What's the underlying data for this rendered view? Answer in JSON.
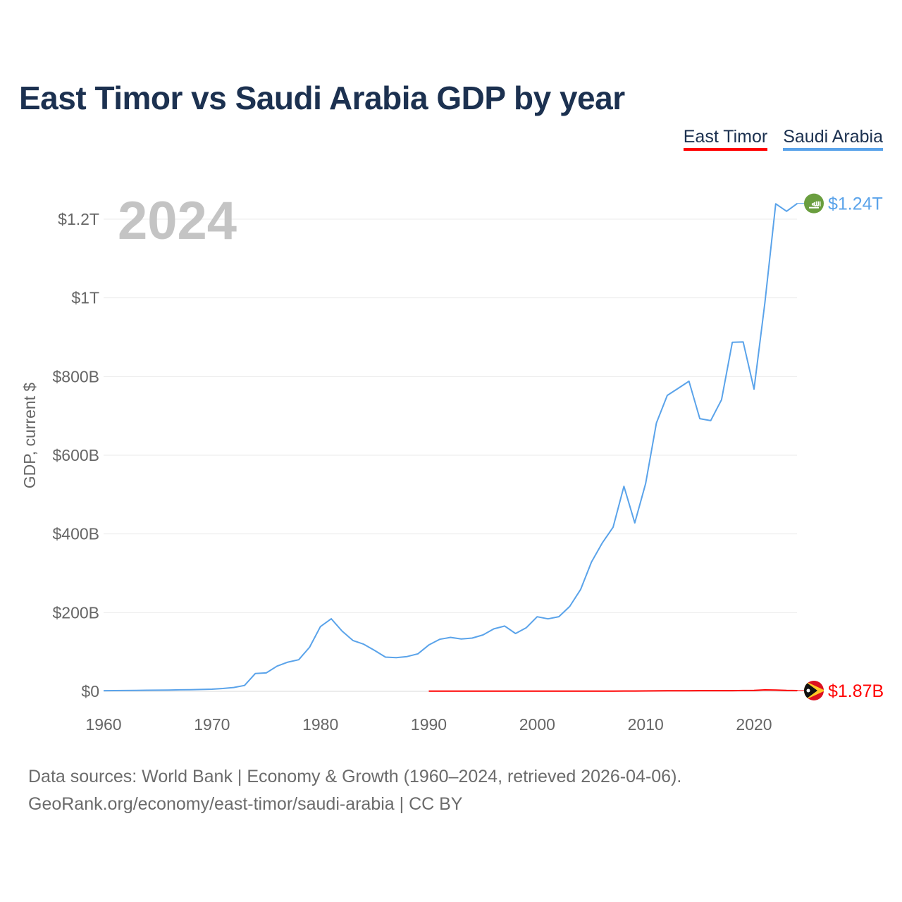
{
  "title": "East Timor vs Saudi Arabia GDP by year",
  "legend": [
    {
      "label": "East Timor",
      "color": "#ff0000"
    },
    {
      "label": "Saudi Arabia",
      "color": "#5aa3ea"
    }
  ],
  "source_line1": "Data sources: World Bank | Economy & Growth (1960–2024, retrieved 2026-04-06).",
  "source_line2": "GeoRank.org/economy/east-timor/saudi-arabia | CC BY",
  "chart_data": {
    "type": "line",
    "title": "East Timor vs Saudi Arabia GDP by year",
    "xlabel": "",
    "ylabel": "GDP, current $",
    "year_label": "2024",
    "xlim": [
      1960,
      2024
    ],
    "ylim": [
      0,
      1240
    ],
    "y_unit": "billion USD",
    "x_ticks": [
      "1960",
      "1970",
      "1980",
      "1990",
      "2000",
      "2010",
      "2020"
    ],
    "x_tick_values": [
      1960,
      1970,
      1980,
      1990,
      2000,
      2010,
      2020
    ],
    "y_ticks": [
      "$0",
      "$200B",
      "$400B",
      "$600B",
      "$800B",
      "$1T",
      "$1.2T"
    ],
    "y_tick_values": [
      0,
      200,
      400,
      600,
      800,
      1000,
      1200
    ],
    "grid": true,
    "legend_position": "top-right",
    "series": [
      {
        "name": "Saudi Arabia",
        "color": "#5aa3ea",
        "end_label": "$1.24T",
        "flag_icon": "saudi-arabia-flag",
        "start_year": 1960,
        "values": [
          1.6,
          1.8,
          2.0,
          2.4,
          2.6,
          2.9,
          3.3,
          3.8,
          4.2,
          4.6,
          5.4,
          7.2,
          9.7,
          14.9,
          45.4,
          46.8,
          64.0,
          74.2,
          80.3,
          111.9,
          164.5,
          184.3,
          153.2,
          129.2,
          119.6,
          103.9,
          86.9,
          85.7,
          88.3,
          95.3,
          117.6,
          132.2,
          137.1,
          132.9,
          135.2,
          143.3,
          158.7,
          165.9,
          146.8,
          161.7,
          189.5,
          184.1,
          189.6,
          215.8,
          258.7,
          328.5,
          376.9,
          417.0,
          521.0,
          428.0,
          528.0,
          682.0,
          752.0,
          770.0,
          788.0,
          693.0,
          688.0,
          741.0,
          887.0,
          888.0,
          768.0,
          987.0,
          1239.0,
          1220.0,
          1240.0
        ]
      },
      {
        "name": "East Timor",
        "color": "#ff0000",
        "end_label": "$1.87B",
        "flag_icon": "east-timor-flag",
        "start_year": 1990,
        "values": [
          0.3,
          0.3,
          0.3,
          0.3,
          0.35,
          0.4,
          0.4,
          0.4,
          0.35,
          0.3,
          0.37,
          0.45,
          0.5,
          0.5,
          0.5,
          0.5,
          0.5,
          0.6,
          0.7,
          0.8,
          0.9,
          1.1,
          1.2,
          1.4,
          1.5,
          1.6,
          1.7,
          1.6,
          1.6,
          2.0,
          2.2,
          3.6,
          3.2,
          2.2,
          1.87
        ]
      }
    ]
  }
}
